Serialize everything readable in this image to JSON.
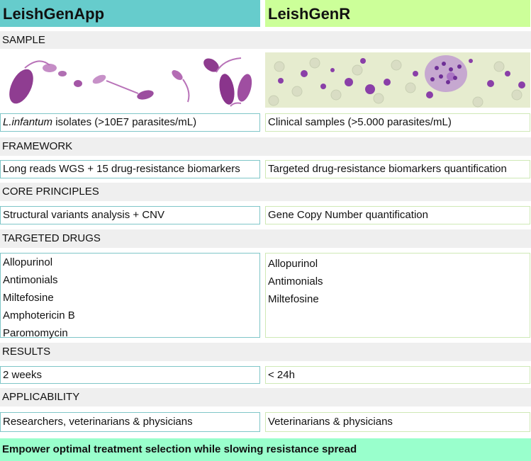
{
  "headers": {
    "left": "LeishGenApp",
    "right": "LeishGenR"
  },
  "sections": {
    "sample": "SAMPLE",
    "framework": "FRAMEWORK",
    "core": "CORE PRINCIPLES",
    "drugs": "TARGETED DRUGS",
    "results": "RESULTS",
    "applicability": "APPLICABILITY"
  },
  "sample": {
    "left_italic": "L.infantum",
    "left_rest": " isolates (>10E7 parasites/mL)",
    "right": "Clinical samples (>5.000 parasites/mL)"
  },
  "framework": {
    "left": "Long reads WGS + 15 drug-resistance biomarkers",
    "right": "Targeted drug-resistance biomarkers quantification"
  },
  "core": {
    "left": "Structural variants analysis + CNV",
    "right": "Gene Copy Number quantification"
  },
  "drugs": {
    "left": [
      "Allopurinol",
      "Antimonials",
      "Miltefosine",
      "Amphotericin B",
      "Paromomycin"
    ],
    "right": [
      "Allopurinol",
      "Antimonials",
      "Miltefosine"
    ]
  },
  "results": {
    "left": "2 weeks",
    "right": "< 24h"
  },
  "applicability": {
    "left": "Researchers, veterinarians & physicians",
    "right": "Veterinarians & physicians"
  },
  "footer": "Empower optimal treatment selection while slowing resistance spread",
  "colors": {
    "left_header": "#66cccc",
    "right_header": "#ccff99",
    "footer": "#99ffcc",
    "section": "#efefef"
  }
}
